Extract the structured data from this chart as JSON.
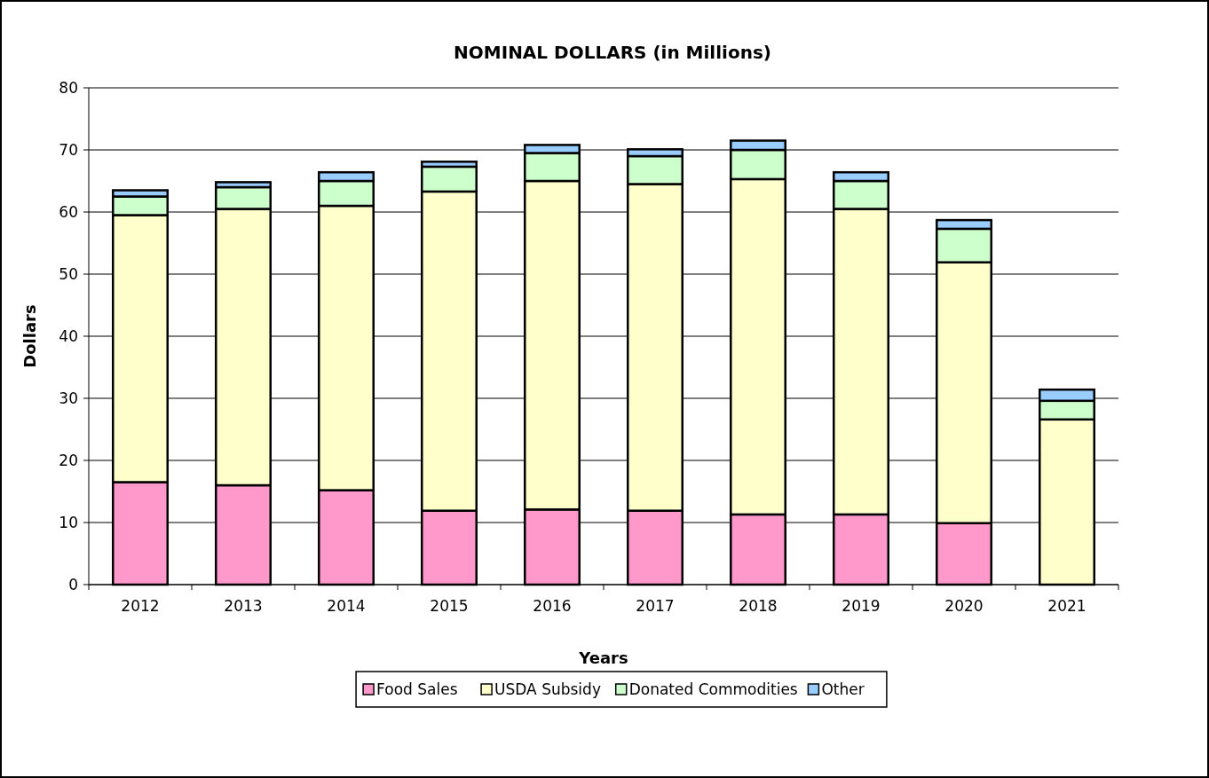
{
  "chart_data": {
    "type": "bar",
    "stacked": true,
    "title": "NOMINAL DOLLARS (in Millions)",
    "xlabel": "Years",
    "ylabel": "Dollars",
    "categories": [
      "2012",
      "2013",
      "2014",
      "2015",
      "2016",
      "2017",
      "2018",
      "2019",
      "2020",
      "2021"
    ],
    "series": [
      {
        "name": "Food Sales",
        "color": "#ff99cc",
        "values": [
          16.5,
          16.0,
          15.2,
          11.9,
          12.1,
          11.9,
          11.3,
          11.3,
          9.9,
          0
        ]
      },
      {
        "name": "USDA Subsidy",
        "color": "#ffffcc",
        "values": [
          43.0,
          44.5,
          45.8,
          51.4,
          52.9,
          52.6,
          54.0,
          49.2,
          42.0,
          26.6
        ]
      },
      {
        "name": "Donated Commodities",
        "color": "#ccffcc",
        "values": [
          3.0,
          3.5,
          4.0,
          4.0,
          4.5,
          4.5,
          4.7,
          4.5,
          5.4,
          3.0
        ]
      },
      {
        "name": "Other",
        "color": "#99ccff",
        "values": [
          1.0,
          0.8,
          1.4,
          0.8,
          1.3,
          1.1,
          1.5,
          1.4,
          1.4,
          1.8
        ]
      }
    ],
    "ylim": [
      0,
      80
    ],
    "yticks": [
      0,
      10,
      20,
      30,
      40,
      50,
      60,
      70,
      80
    ],
    "grid": "y",
    "legend": "bottom"
  }
}
